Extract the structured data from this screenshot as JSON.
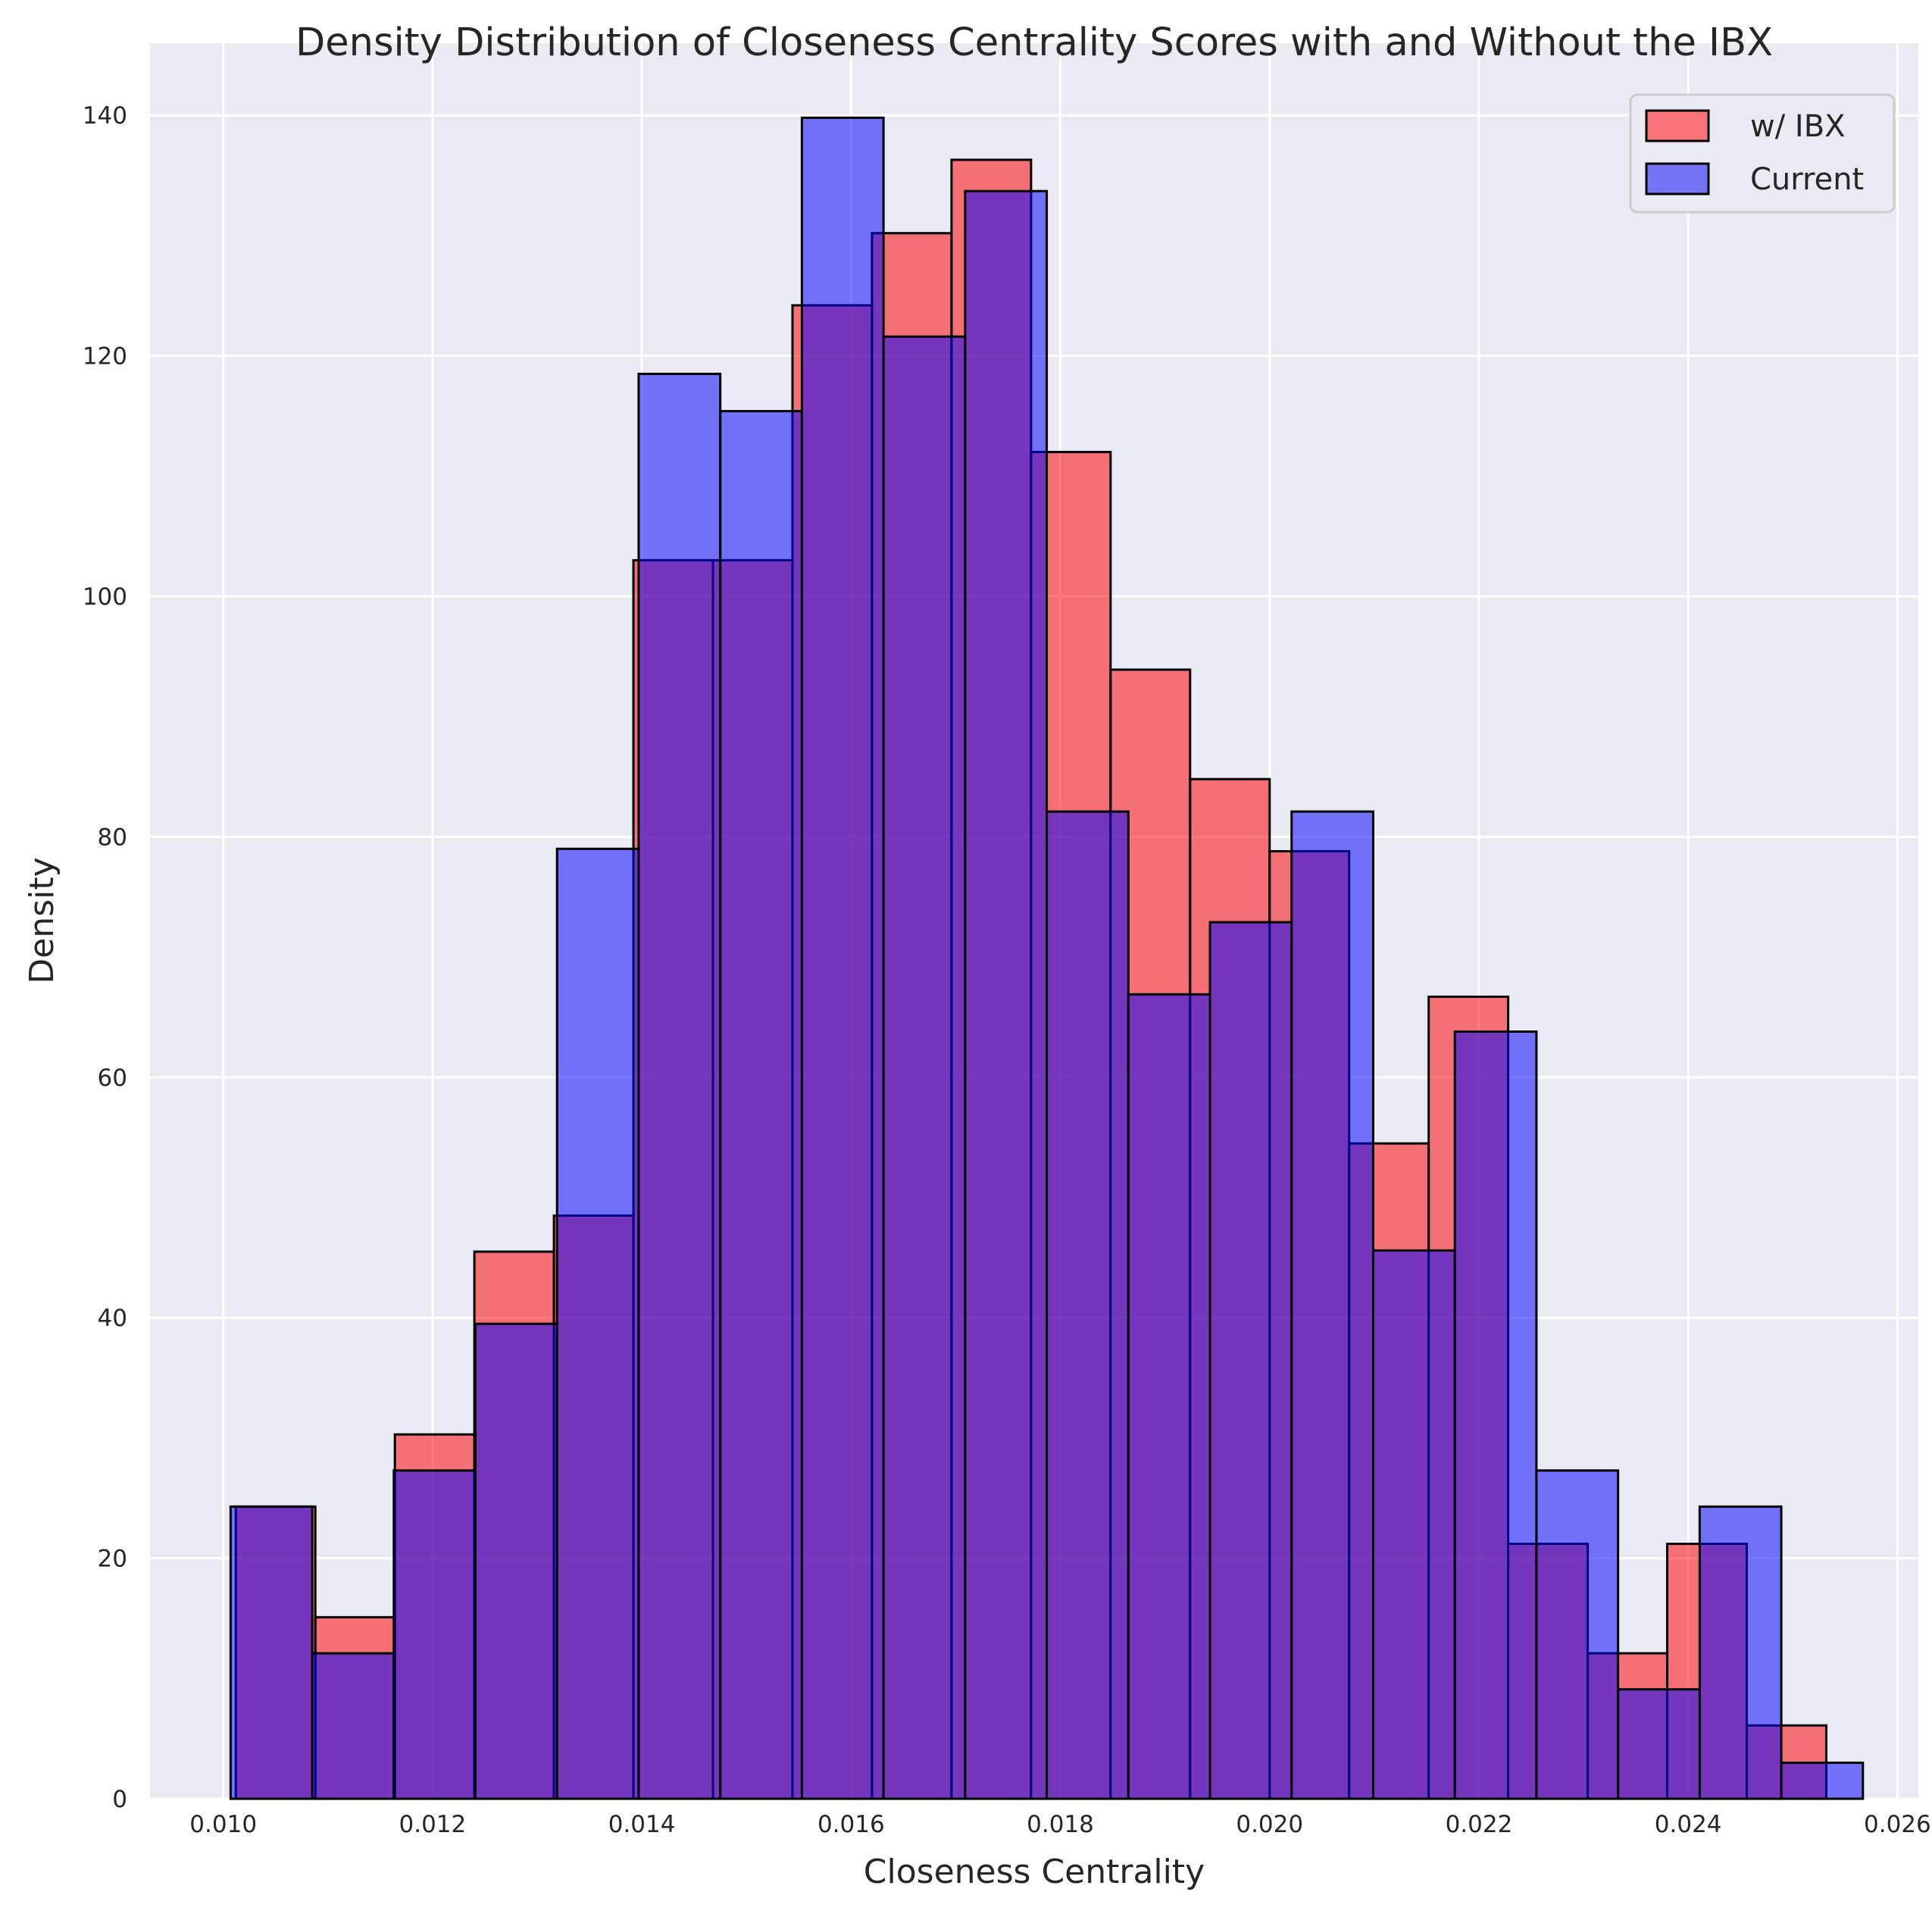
{
  "chart_data": {
    "type": "bar",
    "title": "Density Distribution of Closeness Centrality Scores with and Without the IBX",
    "xlabel": "Closeness Centrality",
    "ylabel": "Density",
    "xlim": [
      0.0093,
      0.0262
    ],
    "ylim": [
      0,
      146
    ],
    "xticks": [
      0.01,
      0.012,
      0.014,
      0.016,
      0.018,
      0.02,
      0.022,
      0.024,
      0.026
    ],
    "xtick_labels": [
      "0.010",
      "0.012",
      "0.014",
      "0.016",
      "0.018",
      "0.020",
      "0.022",
      "0.024",
      "0.026"
    ],
    "yticks": [
      0,
      20,
      40,
      60,
      80,
      100,
      120,
      140
    ],
    "ytick_labels": [
      "0",
      "20",
      "40",
      "60",
      "80",
      "100",
      "120",
      "140"
    ],
    "grid": true,
    "legend_position": "top-right",
    "series": [
      {
        "name": "w/ IBX",
        "color": "#f77378",
        "edges": [
          0.01012,
          0.01088,
          0.01164,
          0.0124,
          0.01316,
          0.01392,
          0.01468,
          0.01544,
          0.0162,
          0.01696,
          0.01772,
          0.01848,
          0.01924,
          0.02,
          0.02076,
          0.02152,
          0.02228,
          0.02304,
          0.0238,
          0.02456,
          0.02532
        ],
        "values": [
          24.3,
          15.1,
          30.3,
          45.5,
          48.5,
          103.0,
          103.0,
          124.2,
          130.2,
          136.3,
          112.0,
          93.9,
          84.8,
          78.8,
          54.5,
          66.7,
          21.2,
          12.1,
          21.2,
          6.1
        ]
      },
      {
        "name": "Current",
        "color": "#7373f6",
        "edges": [
          0.01007,
          0.01085,
          0.01163,
          0.01241,
          0.01319,
          0.01397,
          0.01475,
          0.01553,
          0.01631,
          0.01709,
          0.01787,
          0.01865,
          0.01943,
          0.02021,
          0.02099,
          0.02177,
          0.02255,
          0.02333,
          0.02411,
          0.02489,
          0.02567
        ],
        "values": [
          24.3,
          12.1,
          27.3,
          39.5,
          79.0,
          118.5,
          115.4,
          139.8,
          121.6,
          133.7,
          82.1,
          66.9,
          72.9,
          82.1,
          45.6,
          63.8,
          27.3,
          9.1,
          24.3,
          3.0
        ]
      }
    ]
  }
}
